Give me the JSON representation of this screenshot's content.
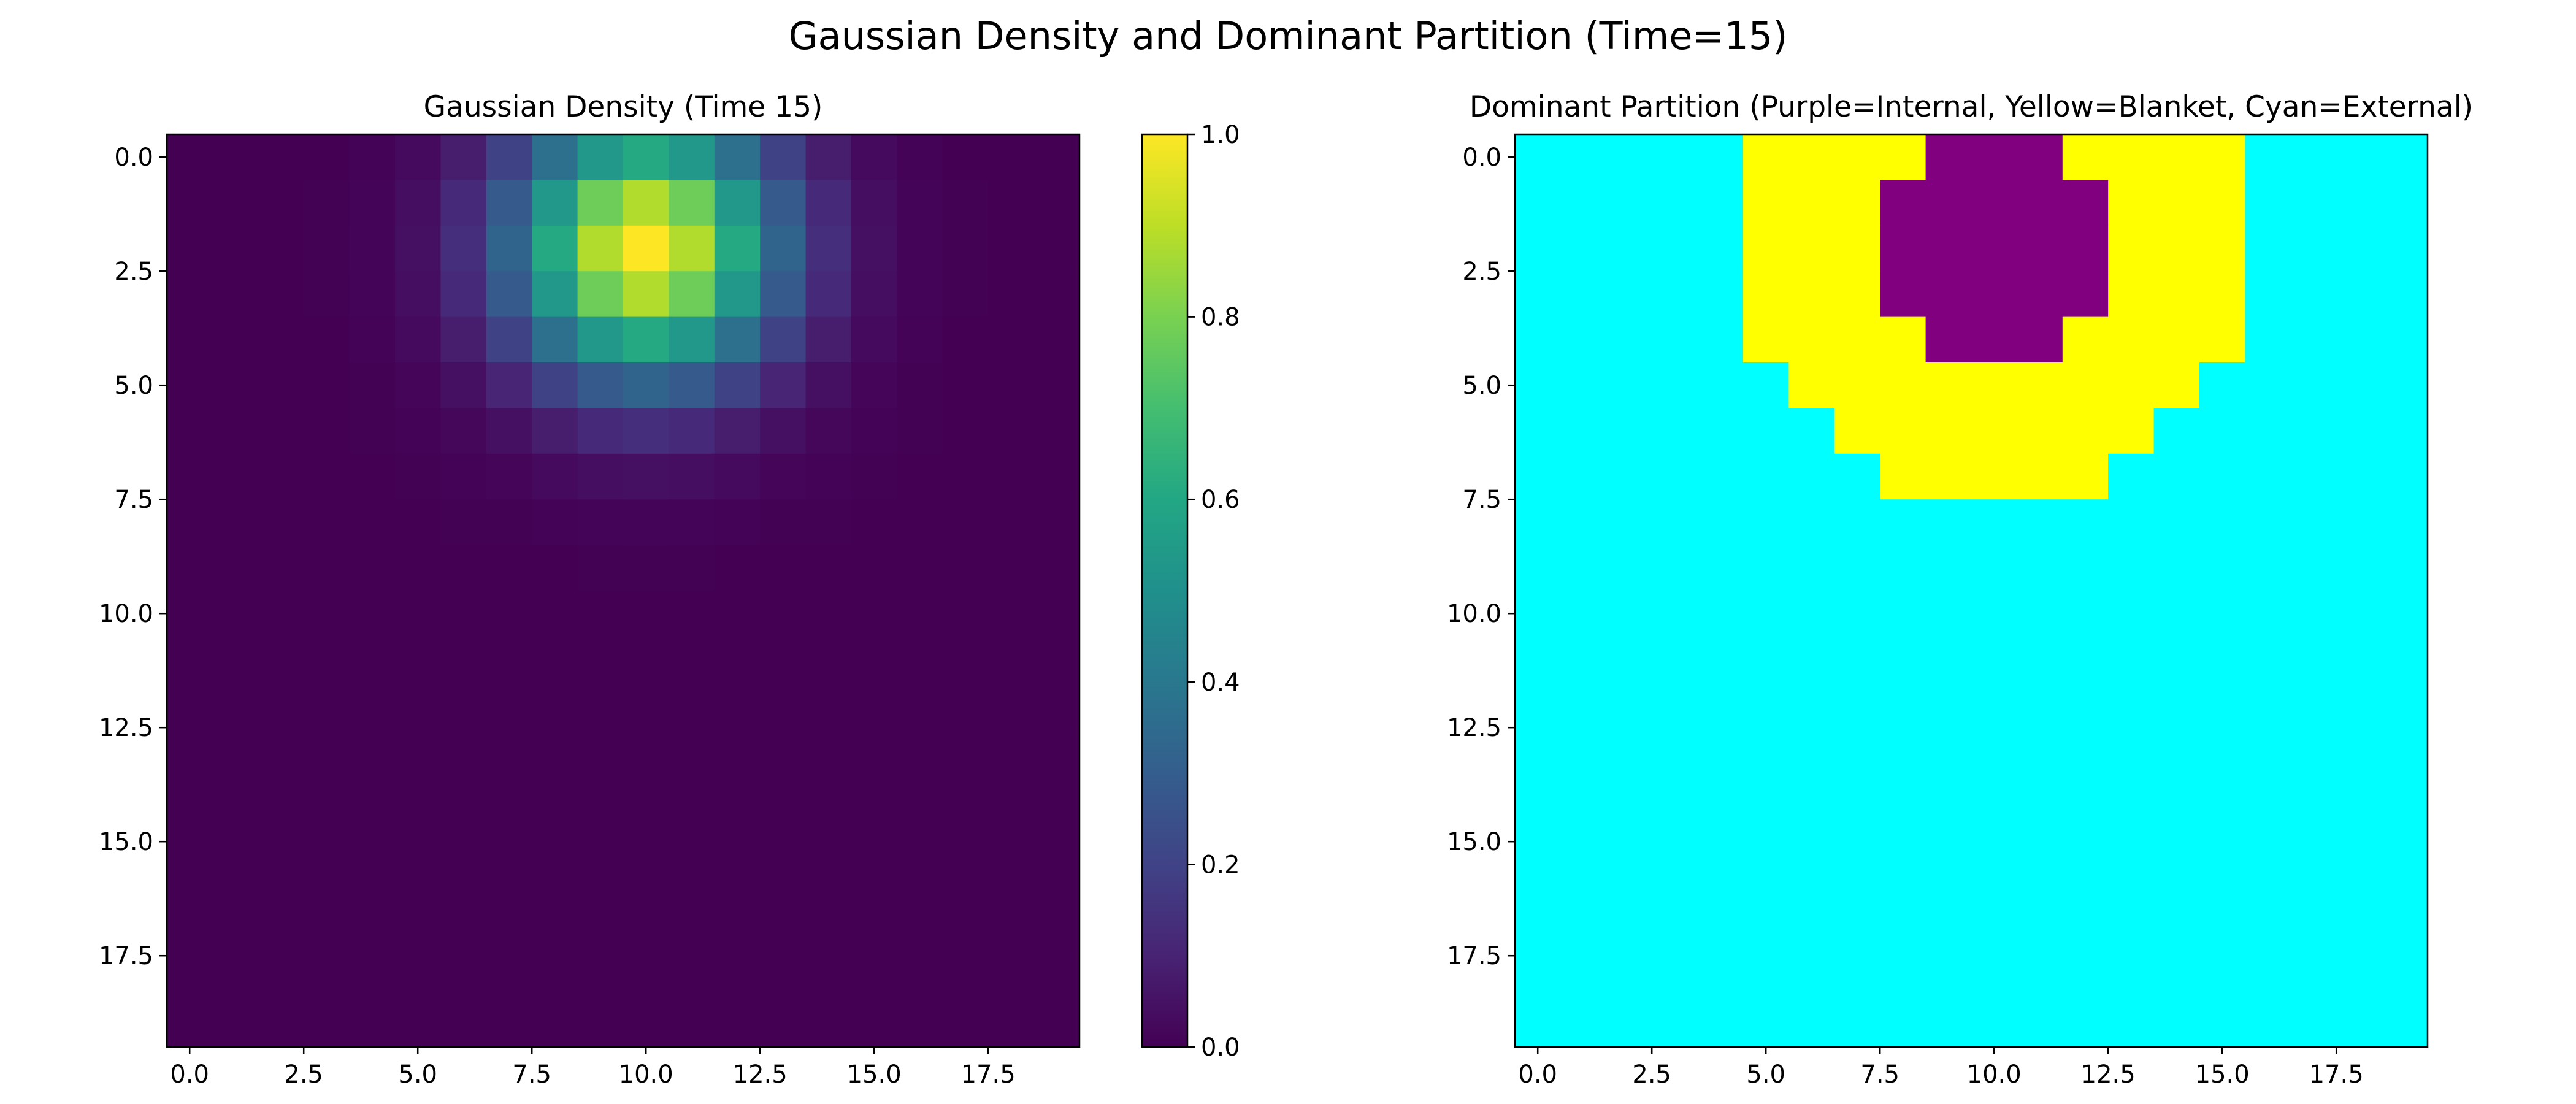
{
  "figure": {
    "suptitle": "Gaussian Density and Dominant Partition (Time=15)"
  },
  "chart_data": [
    {
      "type": "heatmap",
      "title": "Gaussian Density (Time 15)",
      "grid_size": 20,
      "extent": [
        -0.5,
        19.5
      ],
      "center": [
        10,
        2
      ],
      "sigma": 2.0,
      "y_inverted": true,
      "colormap": "viridis",
      "xticks": [
        "0.0",
        "2.5",
        "5.0",
        "7.5",
        "10.0",
        "12.5",
        "15.0",
        "17.5"
      ],
      "yticks": [
        "0.0",
        "2.5",
        "5.0",
        "7.5",
        "10.0",
        "12.5",
        "15.0",
        "17.5"
      ],
      "colorbar": {
        "range": [
          0.0,
          1.0
        ],
        "ticks": [
          "0.0",
          "0.2",
          "0.4",
          "0.6",
          "0.8",
          "1.0"
        ]
      },
      "grid": false
    },
    {
      "type": "heatmap",
      "title": "Dominant Partition (Purple=Internal, Yellow=Blanket, Cyan=External)",
      "grid_size": 20,
      "extent": [
        -0.5,
        19.5
      ],
      "y_inverted": true,
      "categories": {
        "internal": "#800080",
        "blanket": "#ffff00",
        "external": "#00ffff"
      },
      "default_category": "external",
      "regions": [
        {
          "row": 0,
          "internal": [
            9,
            11
          ],
          "blanket": [
            [
              5,
              8
            ],
            [
              12,
              15
            ]
          ]
        },
        {
          "row": 1,
          "internal": [
            8,
            12
          ],
          "blanket": [
            [
              5,
              7
            ],
            [
              13,
              15
            ]
          ]
        },
        {
          "row": 2,
          "internal": [
            8,
            12
          ],
          "blanket": [
            [
              5,
              7
            ],
            [
              13,
              15
            ]
          ]
        },
        {
          "row": 3,
          "internal": [
            8,
            12
          ],
          "blanket": [
            [
              5,
              7
            ],
            [
              13,
              15
            ]
          ]
        },
        {
          "row": 4,
          "internal": [
            9,
            11
          ],
          "blanket": [
            [
              5,
              8
            ],
            [
              12,
              15
            ]
          ]
        },
        {
          "row": 5,
          "internal": null,
          "blanket": [
            [
              6,
              14
            ]
          ]
        },
        {
          "row": 6,
          "internal": null,
          "blanket": [
            [
              7,
              13
            ]
          ]
        },
        {
          "row": 7,
          "internal": null,
          "blanket": [
            [
              8,
              12
            ]
          ]
        }
      ],
      "xticks": [
        "0.0",
        "2.5",
        "5.0",
        "7.5",
        "10.0",
        "12.5",
        "15.0",
        "17.5"
      ],
      "yticks": [
        "0.0",
        "2.5",
        "5.0",
        "7.5",
        "10.0",
        "12.5",
        "15.0",
        "17.5"
      ],
      "grid": false
    }
  ]
}
